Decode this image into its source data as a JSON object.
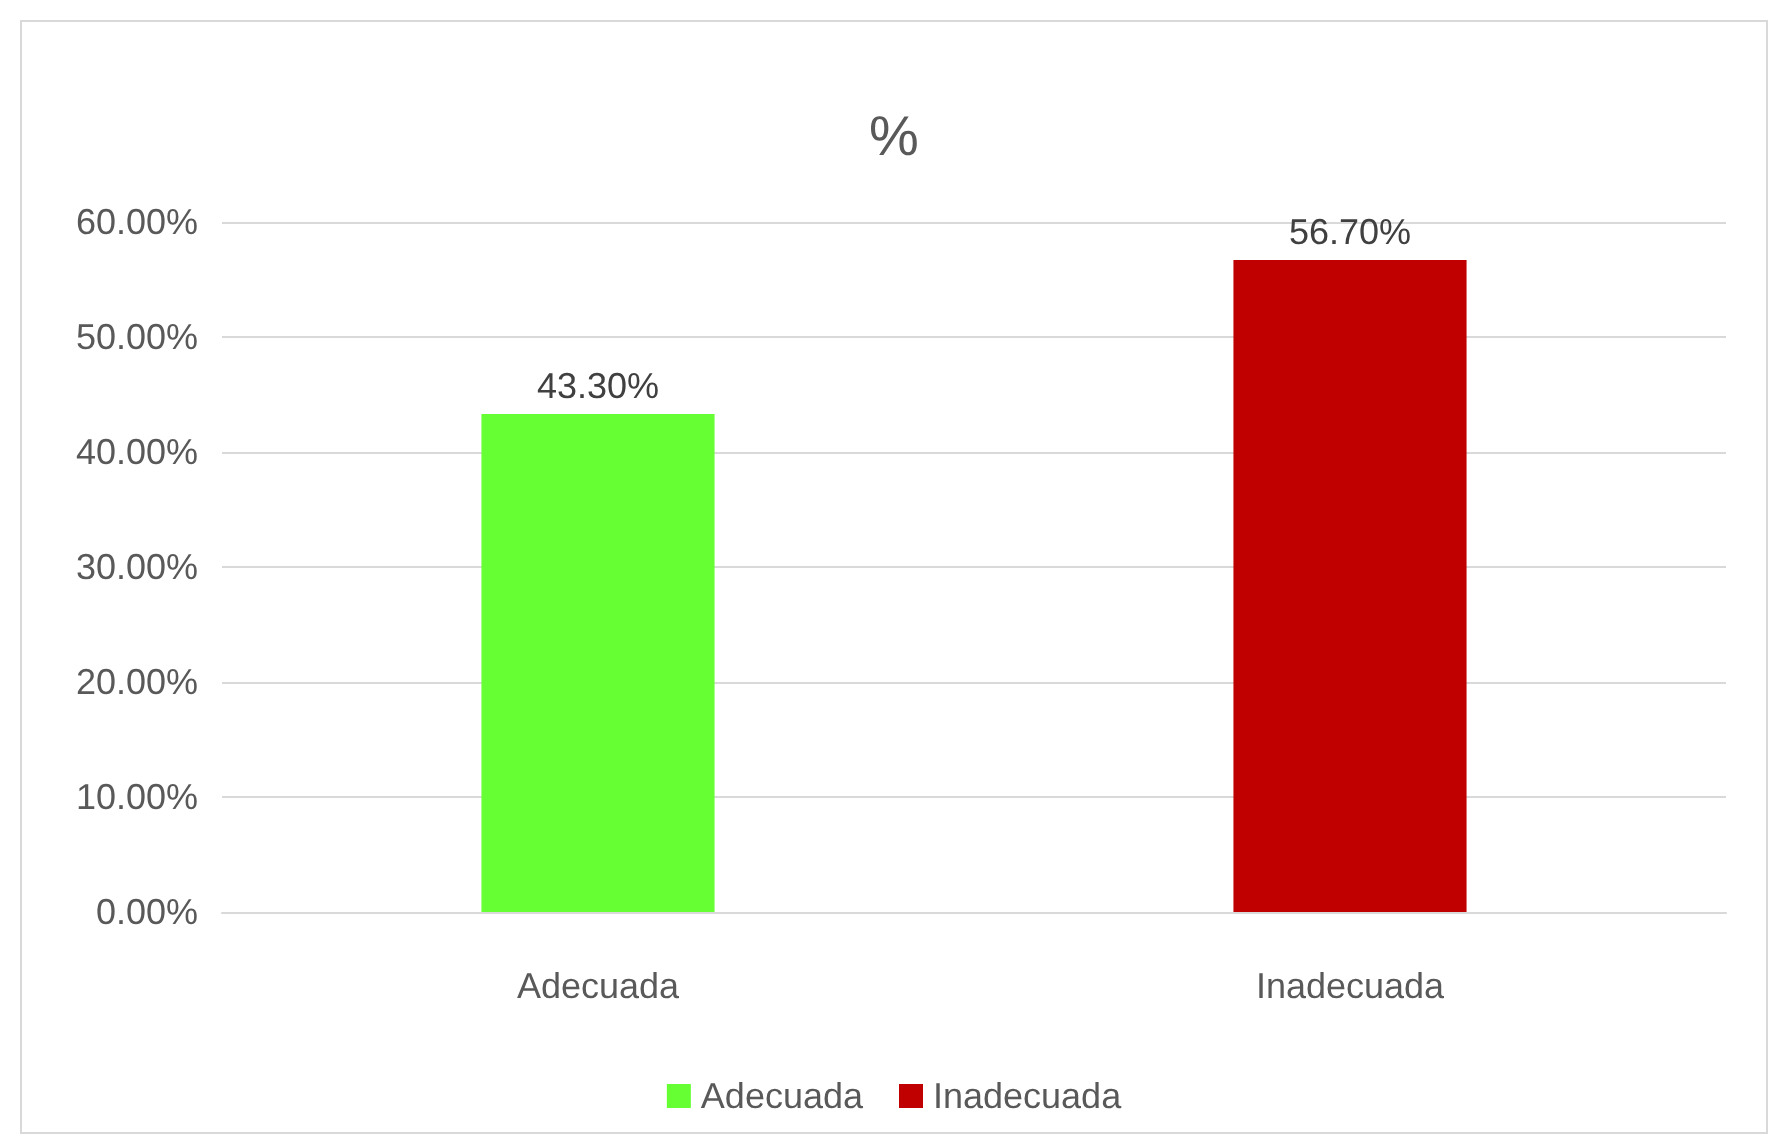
{
  "chart_data": {
    "type": "bar",
    "title": "%",
    "categories": [
      "Adecuada",
      "Inadecuada"
    ],
    "series": [
      {
        "name": "Adecuada",
        "color": "#66ff33",
        "values": [
          43.3,
          null
        ],
        "value_labels": [
          "43.30%",
          null
        ]
      },
      {
        "name": "Inadecuada",
        "color": "#c00000",
        "values": [
          null,
          56.7
        ],
        "value_labels": [
          null,
          "56.70%"
        ]
      }
    ],
    "ylim": [
      0,
      60
    ],
    "yticks": [
      {
        "value": 0,
        "label": "0.00%"
      },
      {
        "value": 10,
        "label": "10.00%"
      },
      {
        "value": 20,
        "label": "20.00%"
      },
      {
        "value": 30,
        "label": "30.00%"
      },
      {
        "value": 40,
        "label": "40.00%"
      },
      {
        "value": 50,
        "label": "50.00%"
      },
      {
        "value": 60,
        "label": "60.00%"
      }
    ],
    "grid": "y",
    "legend": "bottom"
  }
}
